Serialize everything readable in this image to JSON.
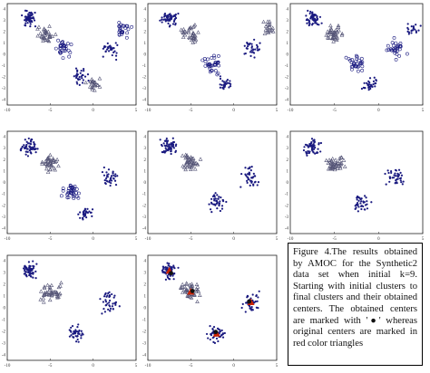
{
  "caption": {
    "text": "Figure 4.The results obtained by AMOC for the Synthetic2 data set when initial k=9. Starting with initial clusters to final clusters and their obtained centers. The obtained centers are marked with '●' whereas original centers are marked in red color triangles"
  },
  "colors": {
    "point": "#1a1a80",
    "triangle": "#555577",
    "center_marker": "#111111",
    "original_center": "#cc2200"
  },
  "chart_data": [
    {
      "type": "scatter",
      "panel": 1,
      "xlim": [
        -10,
        5
      ],
      "ylim": [
        -5,
        5
      ],
      "xticks": [
        "-10",
        "-5",
        "0",
        "5"
      ],
      "yticks": [
        "4",
        "3",
        "2",
        "1",
        "0",
        "-1",
        "-2",
        "-3",
        "-4"
      ],
      "clusters": [
        {
          "cx": -7.5,
          "cy": 3.5,
          "spread": 0.9,
          "marker": "dot",
          "n": 55
        },
        {
          "cx": -5.5,
          "cy": 2.0,
          "spread": 0.9,
          "marker": "triangle",
          "n": 35
        },
        {
          "cx": -3.5,
          "cy": 0.5,
          "spread": 0.9,
          "marker": "circle",
          "n": 30
        },
        {
          "cx": -1.5,
          "cy": -2.0,
          "spread": 0.9,
          "marker": "dot",
          "n": 30
        },
        {
          "cx": 0.0,
          "cy": -3.0,
          "spread": 0.8,
          "marker": "triangle",
          "n": 25
        },
        {
          "cx": 2.0,
          "cy": 0.5,
          "spread": 1.0,
          "marker": "dot",
          "n": 30
        },
        {
          "cx": 3.5,
          "cy": 2.5,
          "spread": 0.9,
          "marker": "circle",
          "n": 25
        }
      ]
    },
    {
      "type": "scatter",
      "panel": 2,
      "xlim": [
        -10,
        5
      ],
      "ylim": [
        -5,
        5
      ],
      "xticks": [
        "-10",
        "-5",
        "0",
        "5"
      ],
      "yticks": [
        "4",
        "3",
        "2",
        "1",
        "0",
        "-1",
        "-2",
        "-3",
        "-4"
      ],
      "clusters": [
        {
          "cx": -7.5,
          "cy": 3.5,
          "spread": 0.9,
          "marker": "dot",
          "n": 55
        },
        {
          "cx": -5.0,
          "cy": 2.0,
          "spread": 1.0,
          "marker": "triangle",
          "n": 40
        },
        {
          "cx": -2.5,
          "cy": -1.0,
          "spread": 1.0,
          "marker": "circle",
          "n": 35
        },
        {
          "cx": -1.0,
          "cy": -3.0,
          "spread": 0.8,
          "marker": "dot",
          "n": 30
        },
        {
          "cx": 2.0,
          "cy": 0.5,
          "spread": 1.1,
          "marker": "dot",
          "n": 35
        },
        {
          "cx": 4.0,
          "cy": 2.5,
          "spread": 0.8,
          "marker": "triangle",
          "n": 20
        }
      ]
    },
    {
      "type": "scatter",
      "panel": 3,
      "xlim": [
        -10,
        5
      ],
      "ylim": [
        -5,
        5
      ],
      "xticks": [
        "-10",
        "-5",
        "0",
        "5"
      ],
      "yticks": [
        "4",
        "3",
        "2",
        "1",
        "0",
        "-1",
        "-2",
        "-3",
        "-4"
      ],
      "clusters": [
        {
          "cx": -7.5,
          "cy": 3.5,
          "spread": 0.9,
          "marker": "dot",
          "n": 55
        },
        {
          "cx": -5.0,
          "cy": 2.0,
          "spread": 1.0,
          "marker": "triangle",
          "n": 40
        },
        {
          "cx": -2.5,
          "cy": -1.0,
          "spread": 1.0,
          "marker": "circle",
          "n": 30
        },
        {
          "cx": -1.0,
          "cy": -3.0,
          "spread": 0.8,
          "marker": "dot",
          "n": 30
        },
        {
          "cx": 2.0,
          "cy": 0.5,
          "spread": 1.1,
          "marker": "circle",
          "n": 30
        },
        {
          "cx": 4.0,
          "cy": 2.5,
          "spread": 0.8,
          "marker": "dot",
          "n": 20
        }
      ]
    },
    {
      "type": "scatter",
      "panel": 4,
      "xlim": [
        -10,
        5
      ],
      "ylim": [
        -5,
        5
      ],
      "xticks": [
        "-10",
        "-5",
        "0",
        "5"
      ],
      "yticks": [
        "4",
        "3",
        "2",
        "1",
        "0",
        "-1",
        "-2",
        "-3",
        "-4"
      ],
      "clusters": [
        {
          "cx": -7.5,
          "cy": 3.5,
          "spread": 0.9,
          "marker": "dot",
          "n": 60
        },
        {
          "cx": -5.0,
          "cy": 2.0,
          "spread": 1.0,
          "marker": "triangle",
          "n": 40
        },
        {
          "cx": -2.5,
          "cy": -1.0,
          "spread": 1.0,
          "marker": "circle",
          "n": 35
        },
        {
          "cx": -1.0,
          "cy": -3.0,
          "spread": 0.8,
          "marker": "dot",
          "n": 30
        },
        {
          "cx": 2.0,
          "cy": 0.5,
          "spread": 1.1,
          "marker": "dot",
          "n": 35
        }
      ]
    },
    {
      "type": "scatter",
      "panel": 5,
      "xlim": [
        -10,
        5
      ],
      "ylim": [
        -5,
        5
      ],
      "xticks": [
        "-10",
        "-5",
        "0",
        "5"
      ],
      "yticks": [
        "4",
        "3",
        "2",
        "1",
        "0",
        "-1",
        "-2",
        "-3",
        "-4"
      ],
      "clusters": [
        {
          "cx": -7.5,
          "cy": 3.5,
          "spread": 0.9,
          "marker": "dot",
          "n": 60
        },
        {
          "cx": -5.0,
          "cy": 2.0,
          "spread": 1.0,
          "marker": "triangle",
          "n": 45
        },
        {
          "cx": -2.0,
          "cy": -2.0,
          "spread": 1.0,
          "marker": "dot",
          "n": 40
        },
        {
          "cx": 2.0,
          "cy": 0.5,
          "spread": 1.1,
          "marker": "dot",
          "n": 40
        }
      ]
    },
    {
      "type": "scatter",
      "panel": 6,
      "xlim": [
        -10,
        5
      ],
      "ylim": [
        -5,
        5
      ],
      "xticks": [
        "-10",
        "-5",
        "0",
        "5"
      ],
      "yticks": [
        "4",
        "3",
        "2",
        "1",
        "0",
        "-1",
        "-2",
        "-3",
        "-4"
      ],
      "clusters": [
        {
          "cx": -7.5,
          "cy": 3.5,
          "spread": 0.9,
          "marker": "dot",
          "n": 60
        },
        {
          "cx": -5.0,
          "cy": 2.0,
          "spread": 1.0,
          "marker": "triangle",
          "n": 45
        },
        {
          "cx": -2.0,
          "cy": -2.0,
          "spread": 1.0,
          "marker": "dot",
          "n": 40
        },
        {
          "cx": 2.0,
          "cy": 0.5,
          "spread": 1.1,
          "marker": "dot",
          "n": 40
        }
      ]
    },
    {
      "type": "scatter",
      "panel": 7,
      "xlim": [
        -10,
        5
      ],
      "ylim": [
        -5,
        5
      ],
      "xticks": [
        "-10",
        "-5",
        "0",
        "5"
      ],
      "yticks": [
        "4",
        "3",
        "2",
        "1",
        "0",
        "-1",
        "-2",
        "-3",
        "-4"
      ],
      "clusters": [
        {
          "cx": -7.5,
          "cy": 3.5,
          "spread": 0.9,
          "marker": "dot",
          "n": 60
        },
        {
          "cx": -5.0,
          "cy": 1.5,
          "spread": 1.1,
          "marker": "triangle",
          "n": 45
        },
        {
          "cx": -2.0,
          "cy": -2.5,
          "spread": 1.0,
          "marker": "dot",
          "n": 40
        },
        {
          "cx": 2.0,
          "cy": 0.5,
          "spread": 1.1,
          "marker": "dot",
          "n": 40
        }
      ]
    },
    {
      "type": "scatter",
      "panel": 8,
      "xlim": [
        -10,
        5
      ],
      "ylim": [
        -5,
        5
      ],
      "xticks": [
        "-10",
        "-5",
        "0",
        "5"
      ],
      "yticks": [
        "4",
        "3",
        "2",
        "1",
        "0",
        "-1",
        "-2",
        "-3",
        "-4"
      ],
      "clusters": [
        {
          "cx": -7.5,
          "cy": 3.5,
          "spread": 0.9,
          "marker": "dot",
          "n": 60
        },
        {
          "cx": -5.0,
          "cy": 1.5,
          "spread": 1.1,
          "marker": "triangle",
          "n": 45
        },
        {
          "cx": -2.0,
          "cy": -2.5,
          "spread": 1.0,
          "marker": "dot",
          "n": 40
        },
        {
          "cx": 2.0,
          "cy": 0.5,
          "spread": 1.1,
          "marker": "dot",
          "n": 40
        }
      ],
      "original_centers": [
        [
          -7.5,
          3.5
        ],
        [
          -5.0,
          1.5
        ],
        [
          -2.0,
          -2.5
        ],
        [
          2.0,
          0.5
        ]
      ],
      "obtained_centers": [
        [
          -7.3,
          3.3
        ],
        [
          -4.8,
          1.6
        ],
        [
          -2.1,
          -2.3
        ],
        [
          1.8,
          0.6
        ]
      ]
    }
  ]
}
